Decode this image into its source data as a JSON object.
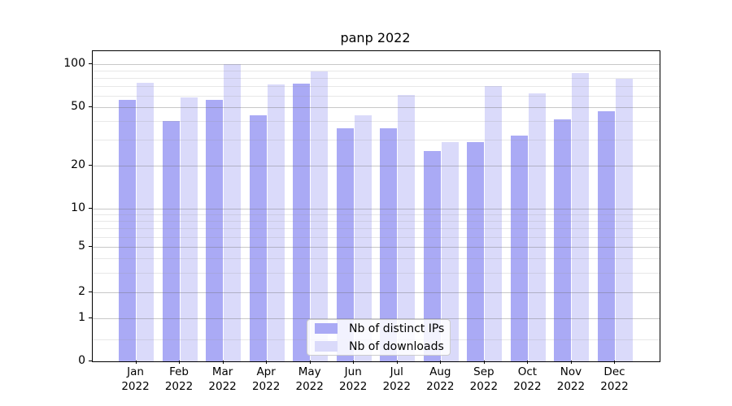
{
  "chart_data": {
    "type": "bar",
    "title": "panp 2022",
    "categories": [
      "Jan 2022",
      "Feb 2022",
      "Mar 2022",
      "Apr 2022",
      "May 2022",
      "Jun 2022",
      "Jul 2022",
      "Aug 2022",
      "Sep 2022",
      "Oct 2022",
      "Nov 2022",
      "Dec 2022"
    ],
    "x_axis": {
      "months": [
        "Jan",
        "Feb",
        "Mar",
        "Apr",
        "May",
        "Jun",
        "Jul",
        "Aug",
        "Sep",
        "Oct",
        "Nov",
        "Dec"
      ],
      "year": "2022"
    },
    "series": [
      {
        "name": "Nb of distinct IPs",
        "color": "#aaaaf5",
        "values": [
          56,
          40,
          56,
          44,
          73,
          36,
          36,
          25,
          29,
          32,
          41,
          47
        ]
      },
      {
        "name": "Nb of downloads",
        "color": "#dadafa",
        "values": [
          74,
          58,
          100,
          72,
          88,
          44,
          61,
          29,
          70,
          62,
          86,
          79
        ]
      }
    ],
    "y_axis": {
      "scale": "log-like",
      "ylim": [
        0,
        100
      ],
      "major_ticks": [
        0,
        1,
        2,
        5,
        10,
        20,
        50,
        100
      ],
      "tick_labels": [
        "0",
        "1",
        "2",
        "5",
        "10",
        "20",
        "50",
        "100"
      ],
      "minor_ticks": [
        0.5,
        3,
        4,
        6,
        7,
        8,
        9,
        30,
        40,
        60,
        70,
        80,
        90
      ]
    },
    "legend": {
      "position": "lower center",
      "entries": [
        "Nb of distinct IPs",
        "Nb of downloads"
      ]
    },
    "grid": true,
    "colors": {
      "bar_distinct_ips": "#aaaaf5",
      "bar_downloads": "#dadafa",
      "major_grid": "#cccccc",
      "minor_grid": "#e8e8e8",
      "axis": "#000000",
      "text": "#000000"
    }
  }
}
